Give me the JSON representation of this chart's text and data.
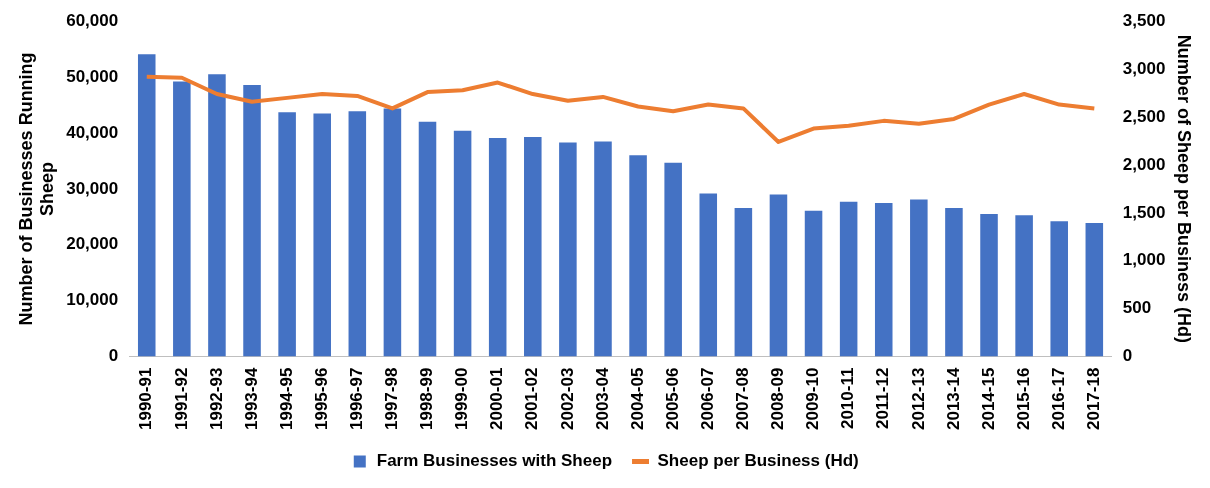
{
  "chart_data": {
    "type": "bar",
    "ylabel": "Number of Businesses Running Sheep",
    "y2label": "Number of Sheep per Business (Hd)",
    "categories": [
      "1990-91",
      "1991-92",
      "1992-93",
      "1993-94",
      "1994-95",
      "1995-96",
      "1996-97",
      "1997-98",
      "1998-99",
      "1999-00",
      "2000-01",
      "2001-02",
      "2002-03",
      "2003-04",
      "2004-05",
      "2005-06",
      "2006-07",
      "2007-08",
      "2008-09",
      "2009-10",
      "2010-11",
      "2011-12",
      "2012-13",
      "2013-14",
      "2014-15",
      "2015-16",
      "2016-17",
      "2017-18"
    ],
    "series": [
      {
        "name": "Farm Businesses with Sheep",
        "color": "#4472c4",
        "values": [
          54100,
          49200,
          50500,
          48600,
          43700,
          43500,
          43900,
          44400,
          42000,
          40400,
          39100,
          39300,
          38300,
          38500,
          36000,
          34700,
          29200,
          26600,
          29000,
          26100,
          27700,
          27500,
          28100,
          26600,
          25500,
          25300,
          24200,
          23900
        ]
      },
      {
        "name": "Sheep per Business (Hd)",
        "type": "line",
        "axis": "y2",
        "color": "#ed7d31",
        "values": [
          2920,
          2910,
          2740,
          2660,
          2700,
          2740,
          2720,
          2590,
          2760,
          2780,
          2860,
          2740,
          2670,
          2710,
          2610,
          2560,
          2630,
          2590,
          2240,
          2380,
          2410,
          2460,
          2430,
          2480,
          2630,
          2740,
          2630,
          2590
        ]
      }
    ],
    "ylim": [
      0,
      60000
    ],
    "yticks": [
      {
        "value": 0,
        "label": "0"
      },
      {
        "value": 10000,
        "label": "10,000"
      },
      {
        "value": 20000,
        "label": "20,000"
      },
      {
        "value": 30000,
        "label": "30,000"
      },
      {
        "value": 40000,
        "label": "40,000"
      },
      {
        "value": 50000,
        "label": "50,000"
      },
      {
        "value": 60000,
        "label": "60,000"
      }
    ],
    "y2lim": [
      0,
      3500
    ],
    "y2ticks": [
      {
        "value": 0,
        "label": "0"
      },
      {
        "value": 500,
        "label": "500"
      },
      {
        "value": 1000,
        "label": "1,000"
      },
      {
        "value": 1500,
        "label": "1,500"
      },
      {
        "value": 2000,
        "label": "2,000"
      },
      {
        "value": 2500,
        "label": "2,500"
      },
      {
        "value": 3000,
        "label": "3,000"
      },
      {
        "value": 3500,
        "label": "3,500"
      }
    ],
    "legend": "bottom",
    "marker": "none",
    "line_style": "solid"
  }
}
